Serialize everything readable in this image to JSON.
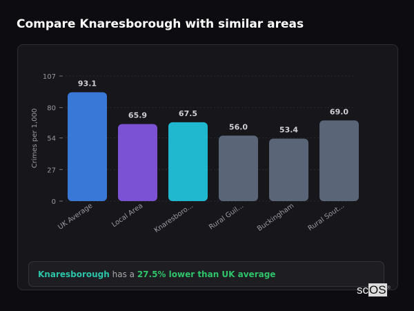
{
  "title": "Compare Knaresborough with similar areas",
  "chart_data": {
    "type": "bar",
    "ylabel": "Crimes per 1,000",
    "ylim": [
      0,
      107
    ],
    "yticks": [
      0,
      27,
      54,
      80,
      107
    ],
    "grid": true,
    "categories": [
      "UK Average",
      "Local Area",
      "Knaresboro...",
      "Rural Guil...",
      "Buckingham",
      "Rural Sout..."
    ],
    "values": [
      93.1,
      65.9,
      67.5,
      56.0,
      53.4,
      69.0
    ],
    "labels": [
      "93.1",
      "65.9",
      "67.5",
      "56.0",
      "53.4",
      "69.0"
    ],
    "colors": [
      "#3a78d8",
      "#7b52d4",
      "#1fb8cf",
      "#5a6578",
      "#5a6578",
      "#5a6578"
    ]
  },
  "insight": {
    "area": "Knaresborough",
    "middle": " has a ",
    "result": "27.5% lower than UK average"
  },
  "logo": {
    "text_a": "sc",
    "text_b": "OS",
    "mark": "®"
  }
}
